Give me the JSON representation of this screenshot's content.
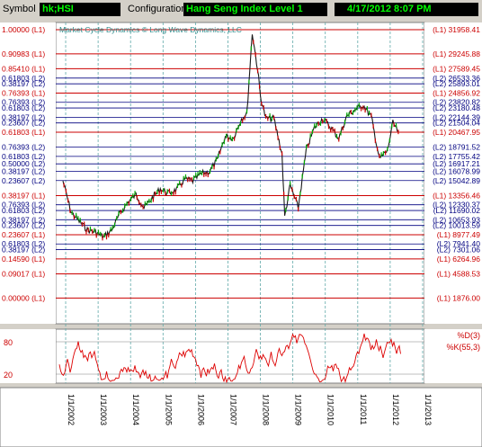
{
  "toolbar": {
    "symbol_label": "Symbol",
    "symbol_value": "hk;HSI",
    "config_label": "Configuration",
    "config_value": "Hang Seng Index Level 1",
    "datetime_value": "4/17/2012 8:07 PM"
  },
  "colors": {
    "background": "#ffffff",
    "level_l1": "#cc0000",
    "level_l2": "#000080",
    "price_up": "#00aa00",
    "price_down": "#cc0000",
    "indicator": "#dd0000",
    "annotation": "#2e8b8b"
  },
  "chart_data": {
    "type": "line",
    "annotation": "Market Cycle Dynamics © Long Wave Dynamics, LLC",
    "price_axis": {
      "min": 0,
      "max": 31958.41,
      "scale": "linear"
    },
    "levels": [
      {
        "ratio": "1.00000 (L1)",
        "value": "(L1) 31958.41",
        "v": 31958.41,
        "cls": "L1"
      },
      {
        "ratio": "0.90983 (L1)",
        "value": "(L1) 29245.88",
        "v": 29245.88,
        "cls": "L1"
      },
      {
        "ratio": "0.85410 (L1)",
        "value": "(L1) 27589.45",
        "v": 27589.45,
        "cls": "L1"
      },
      {
        "ratio": "0.61803 (L2)",
        "value": "(L2) 26533.36",
        "v": 26533.36,
        "cls": "L2"
      },
      {
        "ratio": "0.38197 (L2)",
        "value": "(L2) 25893.01",
        "v": 25893.01,
        "cls": "L2"
      },
      {
        "ratio": "0.76393 (L1)",
        "value": "(L1) 24856.92",
        "v": 24856.92,
        "cls": "L1"
      },
      {
        "ratio": "0.76393 (L2)",
        "value": "(L2) 23820.82",
        "v": 23820.82,
        "cls": "L2"
      },
      {
        "ratio": "0.61803 (L2)",
        "value": "(L2) 23180.48",
        "v": 23180.48,
        "cls": "L2"
      },
      {
        "ratio": "0.38197 (L2)",
        "value": "(L2) 22144.39",
        "v": 22144.39,
        "cls": "L2"
      },
      {
        "ratio": "0.23607 (L2)",
        "value": "(L2) 21504.04",
        "v": 21504.04,
        "cls": "L2"
      },
      {
        "ratio": "0.61803 (L1)",
        "value": "(L1) 20467.95",
        "v": 20467.95,
        "cls": "L1"
      },
      {
        "ratio": "0.76393 (L2)",
        "value": "(L2) 18791.52",
        "v": 18791.52,
        "cls": "L2"
      },
      {
        "ratio": "0.61803 (L2)",
        "value": "(L2) 17755.42",
        "v": 17755.42,
        "cls": "L2"
      },
      {
        "ratio": "0.50000 (L2)",
        "value": "(L2) 16917.21",
        "v": 16917.21,
        "cls": "L2"
      },
      {
        "ratio": "0.38197 (L2)",
        "value": "(L2) 16078.99",
        "v": 16078.99,
        "cls": "L2"
      },
      {
        "ratio": "0.23607 (L2)",
        "value": "(L2) 15042.89",
        "v": 15042.89,
        "cls": "L2"
      },
      {
        "ratio": "0.38197 (L1)",
        "value": "(L1) 13356.46",
        "v": 13356.46,
        "cls": "L1"
      },
      {
        "ratio": "0.76393 (L2)",
        "value": "(L2) 12330.37",
        "v": 12330.37,
        "cls": "L2"
      },
      {
        "ratio": "0.61803 (L2)",
        "value": "(L2) 11690.02",
        "v": 11690.02,
        "cls": "L2"
      },
      {
        "ratio": "0.38197 (L2)",
        "value": "(L2) 10653.93",
        "v": 10653.93,
        "cls": "L2"
      },
      {
        "ratio": "0.23607 (L2)",
        "value": "(L2) 10013.59",
        "v": 10013.59,
        "cls": "L2"
      },
      {
        "ratio": "0.23607 (L1)",
        "value": "(L1) 8977.49",
        "v": 8977.49,
        "cls": "L1"
      },
      {
        "ratio": "0.61803 (L2)",
        "value": "(L2) 7941.40",
        "v": 7941.4,
        "cls": "L2"
      },
      {
        "ratio": "0.38197 (L2)",
        "value": "(L2) 7301.06",
        "v": 7301.06,
        "cls": "L2"
      },
      {
        "ratio": "0.14590 (L1)",
        "value": "(L1) 6264.96",
        "v": 6264.96,
        "cls": "L1"
      },
      {
        "ratio": "0.09017 (L1)",
        "value": "(L1) 4588.53",
        "v": 4588.53,
        "cls": "L1"
      },
      {
        "ratio": "0.00000 (L1)",
        "value": "(L1) 1876.00",
        "v": 1876.0,
        "cls": "L1"
      }
    ],
    "x_ticks": [
      "1/1/2002",
      "1/1/2003",
      "1/1/2004",
      "1/1/2005",
      "1/1/2006",
      "1/1/2007",
      "1/1/2008",
      "1/1/2009",
      "1/1/2010",
      "1/1/2011",
      "1/1/2012",
      "1/1/2013"
    ],
    "price_series": {
      "x": [
        "2001-12",
        "2002-03",
        "2002-06",
        "2002-09",
        "2002-12",
        "2003-03",
        "2003-06",
        "2003-09",
        "2003-12",
        "2004-03",
        "2004-06",
        "2004-09",
        "2004-12",
        "2005-03",
        "2005-06",
        "2005-09",
        "2005-12",
        "2006-03",
        "2006-06",
        "2006-09",
        "2006-12",
        "2007-03",
        "2007-06",
        "2007-08",
        "2007-10",
        "2007-12",
        "2008-01",
        "2008-03",
        "2008-06",
        "2008-09",
        "2008-10",
        "2008-12",
        "2009-03",
        "2009-06",
        "2009-09",
        "2009-12",
        "2010-03",
        "2010-06",
        "2010-09",
        "2010-12",
        "2011-03",
        "2011-06",
        "2011-09",
        "2011-12",
        "2012-02",
        "2012-04"
      ],
      "y": [
        15000,
        11500,
        10500,
        9500,
        9300,
        8700,
        9500,
        11300,
        12600,
        13500,
        12000,
        13100,
        14100,
        13600,
        14000,
        15200,
        15000,
        15800,
        16000,
        17300,
        20000,
        19800,
        22000,
        22500,
        31600,
        27500,
        24500,
        22000,
        22000,
        18000,
        11000,
        14500,
        12000,
        18500,
        21000,
        22000,
        21000,
        19800,
        22300,
        23000,
        23500,
        22200,
        17500,
        18400,
        21500,
        20500
      ]
    },
    "indicator": {
      "labels": [
        "%D(3)",
        "%K(55,3)"
      ],
      "levels": [
        80,
        20
      ],
      "range": [
        0,
        100
      ]
    }
  }
}
